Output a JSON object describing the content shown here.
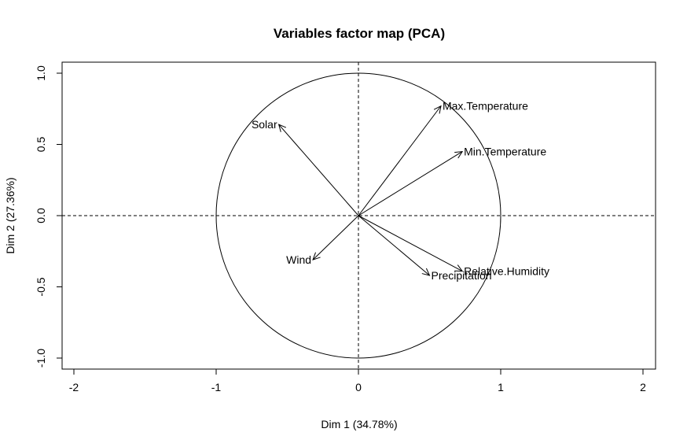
{
  "chart_data": {
    "type": "scatter",
    "subtype": "pca-variables-factor-map",
    "title": "Variables factor map (PCA)",
    "xlabel": "Dim 1 (34.78%)",
    "ylabel": "Dim 2 (27.36%)",
    "xlim": [
      -2.1,
      2.1
    ],
    "ylim": [
      -1.08,
      1.08
    ],
    "xticks": [
      -2,
      -1,
      0,
      1,
      2
    ],
    "xtick_labels": [
      "-2",
      "-1",
      "0",
      "1",
      "2"
    ],
    "yticks": [
      -1.0,
      -0.5,
      0.0,
      0.5,
      1.0
    ],
    "ytick_labels": [
      "-1.0",
      "-0.5",
      "0.0",
      "0.5",
      "1.0"
    ],
    "unit_circle": true,
    "reference_lines": [
      "x=0",
      "y=0"
    ],
    "grid": false,
    "legend": "none",
    "variables": [
      {
        "name": "Max.Temperature",
        "x": 0.58,
        "y": 0.77
      },
      {
        "name": "Min.Temperature",
        "x": 0.73,
        "y": 0.45
      },
      {
        "name": "Solar",
        "x": -0.56,
        "y": 0.64
      },
      {
        "name": "Wind",
        "x": -0.32,
        "y": -0.31
      },
      {
        "name": "Precipitation",
        "x": 0.5,
        "y": -0.42
      },
      {
        "name": "Relative.Humidity",
        "x": 0.73,
        "y": -0.39
      }
    ],
    "colors": {
      "lines": "#000000",
      "background": "#ffffff"
    }
  }
}
